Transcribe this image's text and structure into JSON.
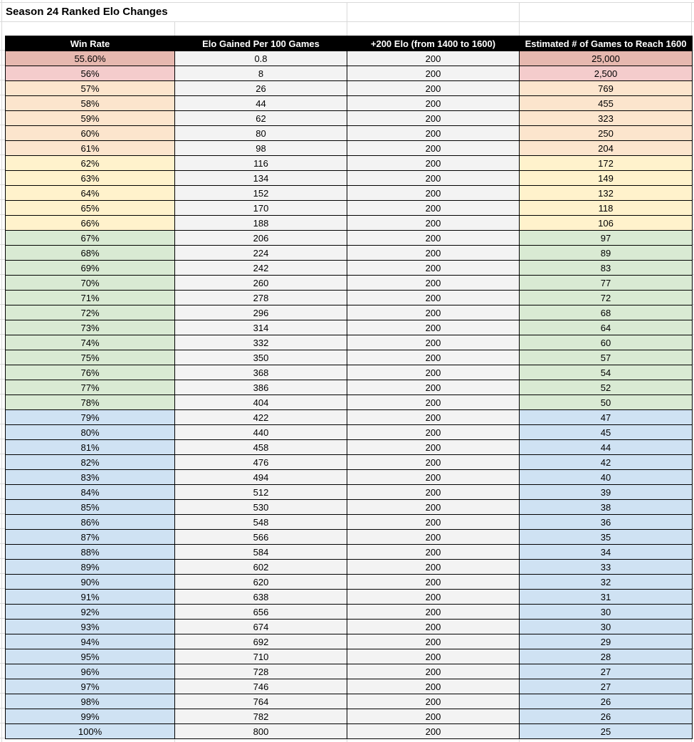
{
  "app": {
    "title": "Season 24 Ranked Elo Changes"
  },
  "colors": {
    "red_dark": "#e6b8af",
    "red": "#f4cccc",
    "orange": "#fce5cd",
    "yellow": "#fff2cc",
    "green": "#d9ead3",
    "blue": "#cfe2f3",
    "neutral": "#f3f3f3",
    "header_bg": "#000000",
    "header_text": "#ffffff",
    "gridline": "#d9d9d9",
    "partial_row_fill": "#c9daf8"
  },
  "table": {
    "headers": [
      "Win Rate",
      "Elo Gained Per 100 Games",
      "+200 Elo (from 1400 to 1600)",
      "Estimated # of Games to Reach 1600"
    ],
    "rows": [
      {
        "win_rate": "55.60%",
        "elo": "0.8",
        "plus200": "200",
        "games": "25,000",
        "group": "red_dark"
      },
      {
        "win_rate": "56%",
        "elo": "8",
        "plus200": "200",
        "games": "2,500",
        "group": "red"
      },
      {
        "win_rate": "57%",
        "elo": "26",
        "plus200": "200",
        "games": "769",
        "group": "orange"
      },
      {
        "win_rate": "58%",
        "elo": "44",
        "plus200": "200",
        "games": "455",
        "group": "orange"
      },
      {
        "win_rate": "59%",
        "elo": "62",
        "plus200": "200",
        "games": "323",
        "group": "orange"
      },
      {
        "win_rate": "60%",
        "elo": "80",
        "plus200": "200",
        "games": "250",
        "group": "orange"
      },
      {
        "win_rate": "61%",
        "elo": "98",
        "plus200": "200",
        "games": "204",
        "group": "orange"
      },
      {
        "win_rate": "62%",
        "elo": "116",
        "plus200": "200",
        "games": "172",
        "group": "yellow"
      },
      {
        "win_rate": "63%",
        "elo": "134",
        "plus200": "200",
        "games": "149",
        "group": "yellow"
      },
      {
        "win_rate": "64%",
        "elo": "152",
        "plus200": "200",
        "games": "132",
        "group": "yellow"
      },
      {
        "win_rate": "65%",
        "elo": "170",
        "plus200": "200",
        "games": "118",
        "group": "yellow"
      },
      {
        "win_rate": "66%",
        "elo": "188",
        "plus200": "200",
        "games": "106",
        "group": "yellow"
      },
      {
        "win_rate": "67%",
        "elo": "206",
        "plus200": "200",
        "games": "97",
        "group": "green"
      },
      {
        "win_rate": "68%",
        "elo": "224",
        "plus200": "200",
        "games": "89",
        "group": "green"
      },
      {
        "win_rate": "69%",
        "elo": "242",
        "plus200": "200",
        "games": "83",
        "group": "green"
      },
      {
        "win_rate": "70%",
        "elo": "260",
        "plus200": "200",
        "games": "77",
        "group": "green"
      },
      {
        "win_rate": "71%",
        "elo": "278",
        "plus200": "200",
        "games": "72",
        "group": "green"
      },
      {
        "win_rate": "72%",
        "elo": "296",
        "plus200": "200",
        "games": "68",
        "group": "green"
      },
      {
        "win_rate": "73%",
        "elo": "314",
        "plus200": "200",
        "games": "64",
        "group": "green"
      },
      {
        "win_rate": "74%",
        "elo": "332",
        "plus200": "200",
        "games": "60",
        "group": "green"
      },
      {
        "win_rate": "75%",
        "elo": "350",
        "plus200": "200",
        "games": "57",
        "group": "green"
      },
      {
        "win_rate": "76%",
        "elo": "368",
        "plus200": "200",
        "games": "54",
        "group": "green"
      },
      {
        "win_rate": "77%",
        "elo": "386",
        "plus200": "200",
        "games": "52",
        "group": "green"
      },
      {
        "win_rate": "78%",
        "elo": "404",
        "plus200": "200",
        "games": "50",
        "group": "green"
      },
      {
        "win_rate": "79%",
        "elo": "422",
        "plus200": "200",
        "games": "47",
        "group": "blue"
      },
      {
        "win_rate": "80%",
        "elo": "440",
        "plus200": "200",
        "games": "45",
        "group": "blue"
      },
      {
        "win_rate": "81%",
        "elo": "458",
        "plus200": "200",
        "games": "44",
        "group": "blue"
      },
      {
        "win_rate": "82%",
        "elo": "476",
        "plus200": "200",
        "games": "42",
        "group": "blue"
      },
      {
        "win_rate": "83%",
        "elo": "494",
        "plus200": "200",
        "games": "40",
        "group": "blue"
      },
      {
        "win_rate": "84%",
        "elo": "512",
        "plus200": "200",
        "games": "39",
        "group": "blue"
      },
      {
        "win_rate": "85%",
        "elo": "530",
        "plus200": "200",
        "games": "38",
        "group": "blue"
      },
      {
        "win_rate": "86%",
        "elo": "548",
        "plus200": "200",
        "games": "36",
        "group": "blue"
      },
      {
        "win_rate": "87%",
        "elo": "566",
        "plus200": "200",
        "games": "35",
        "group": "blue"
      },
      {
        "win_rate": "88%",
        "elo": "584",
        "plus200": "200",
        "games": "34",
        "group": "blue"
      },
      {
        "win_rate": "89%",
        "elo": "602",
        "plus200": "200",
        "games": "33",
        "group": "blue"
      },
      {
        "win_rate": "90%",
        "elo": "620",
        "plus200": "200",
        "games": "32",
        "group": "blue"
      },
      {
        "win_rate": "91%",
        "elo": "638",
        "plus200": "200",
        "games": "31",
        "group": "blue"
      },
      {
        "win_rate": "92%",
        "elo": "656",
        "plus200": "200",
        "games": "30",
        "group": "blue"
      },
      {
        "win_rate": "93%",
        "elo": "674",
        "plus200": "200",
        "games": "30",
        "group": "blue"
      },
      {
        "win_rate": "94%",
        "elo": "692",
        "plus200": "200",
        "games": "29",
        "group": "blue"
      },
      {
        "win_rate": "95%",
        "elo": "710",
        "plus200": "200",
        "games": "28",
        "group": "blue"
      },
      {
        "win_rate": "96%",
        "elo": "728",
        "plus200": "200",
        "games": "27",
        "group": "blue"
      },
      {
        "win_rate": "97%",
        "elo": "746",
        "plus200": "200",
        "games": "27",
        "group": "blue"
      },
      {
        "win_rate": "98%",
        "elo": "764",
        "plus200": "200",
        "games": "26",
        "group": "blue"
      },
      {
        "win_rate": "99%",
        "elo": "782",
        "plus200": "200",
        "games": "26",
        "group": "blue"
      },
      {
        "win_rate": "100%",
        "elo": "800",
        "plus200": "200",
        "games": "25",
        "group": "blue"
      }
    ]
  }
}
